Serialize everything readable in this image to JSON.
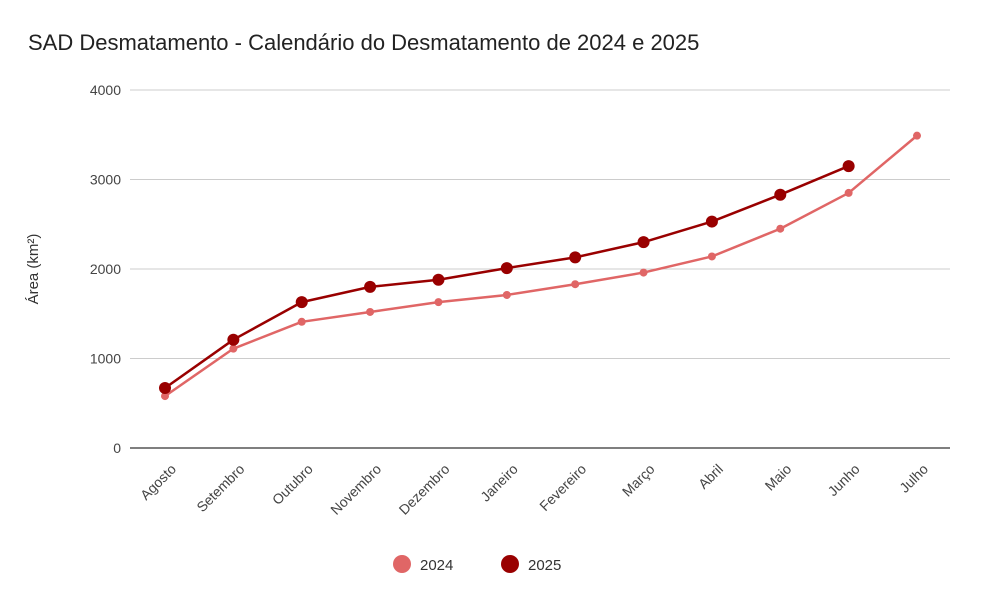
{
  "chart_data": {
    "type": "line",
    "title": "SAD Desmatamento - Calendário do Desmatamento de 2024 e 2025",
    "xlabel": "",
    "ylabel": "Área (km²)",
    "ylim": [
      0,
      4000
    ],
    "yticks": [
      0,
      1000,
      2000,
      3000,
      4000
    ],
    "grid": true,
    "legend_position": "bottom",
    "categories": [
      "Agosto",
      "Setembro",
      "Outubro",
      "Novembro",
      "Dezembro",
      "Janeiro",
      "Fevereiro",
      "Março",
      "Abril",
      "Maio",
      "Junho",
      "Julho"
    ],
    "series": [
      {
        "name": "2024",
        "color": "#e06666",
        "values": [
          580,
          1110,
          1410,
          1520,
          1630,
          1710,
          1830,
          1960,
          2140,
          2450,
          2850,
          3490
        ]
      },
      {
        "name": "2025",
        "color": "#990000",
        "values": [
          670,
          1210,
          1630,
          1800,
          1880,
          2010,
          2130,
          2300,
          2530,
          2830,
          3150,
          null
        ]
      }
    ]
  }
}
